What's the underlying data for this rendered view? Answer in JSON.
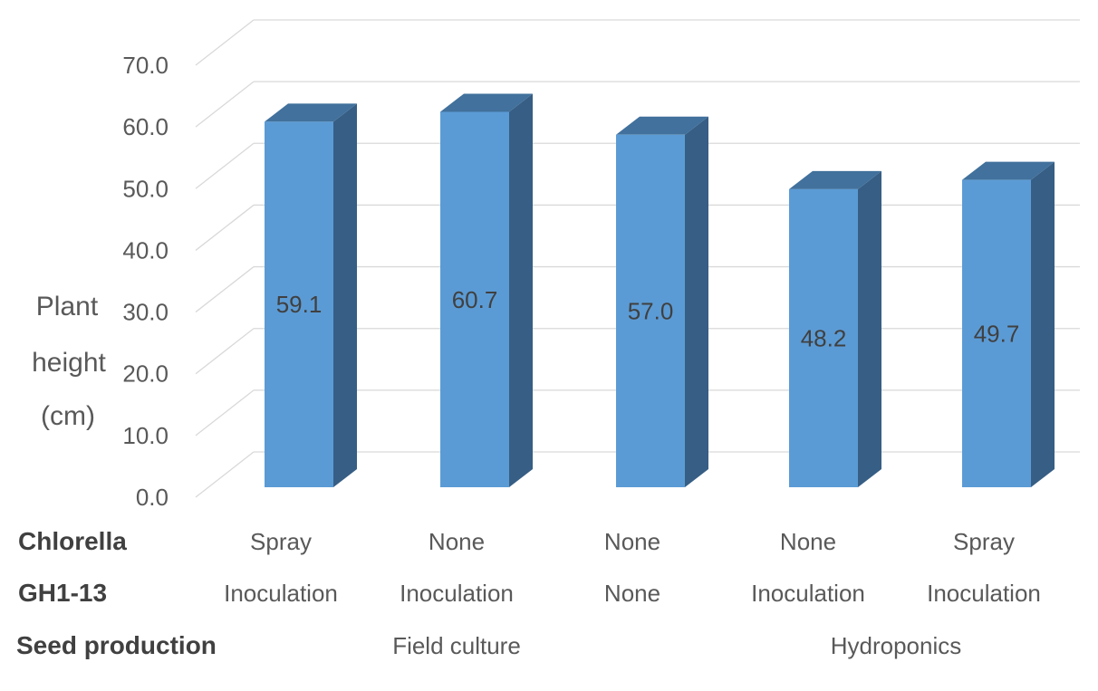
{
  "chart_data": {
    "type": "bar",
    "subtype": "3d-column",
    "title": "",
    "xlabel": "",
    "ylabel": "Plant height (cm)",
    "ylabel_lines": [
      "Plant",
      "height",
      "(cm)"
    ],
    "ylim": [
      0,
      70
    ],
    "ytick_step": 10,
    "yticks": [
      "70.0",
      "60.0",
      "50.0",
      "40.0",
      "30.0",
      "20.0",
      "10.0",
      "0.0"
    ],
    "grid": true,
    "legend_position": "none",
    "series_name": "Plant height (cm)",
    "values": [
      59.1,
      60.7,
      57.0,
      48.2,
      49.7
    ],
    "value_labels": [
      "59.1",
      "60.7",
      "57.0",
      "48.2",
      "49.7"
    ],
    "category_rows": [
      {
        "label": "Chlorella",
        "cells": [
          "Spray",
          "None",
          "None",
          "None",
          "Spray"
        ]
      },
      {
        "label": "GH1-13",
        "cells": [
          "Inoculation",
          "Inoculation",
          "None",
          "Inoculation",
          "Inoculation"
        ]
      },
      {
        "label": "Seed production",
        "groups": [
          {
            "label": "Field culture",
            "span": [
              0,
              2
            ]
          },
          {
            "label": "Hydroponics",
            "span": [
              3,
              4
            ]
          }
        ]
      }
    ],
    "colors": {
      "bar_front": "#5B9BD5",
      "bar_top": "#41719C",
      "bar_side": "#375E84",
      "gridline": "#D9D9D9",
      "tick_text": "#595959",
      "axis_title_text": "#595959",
      "category_text": "#595959",
      "header_text": "#404040",
      "data_label_text": "#404040",
      "background": "#FFFFFF"
    }
  }
}
